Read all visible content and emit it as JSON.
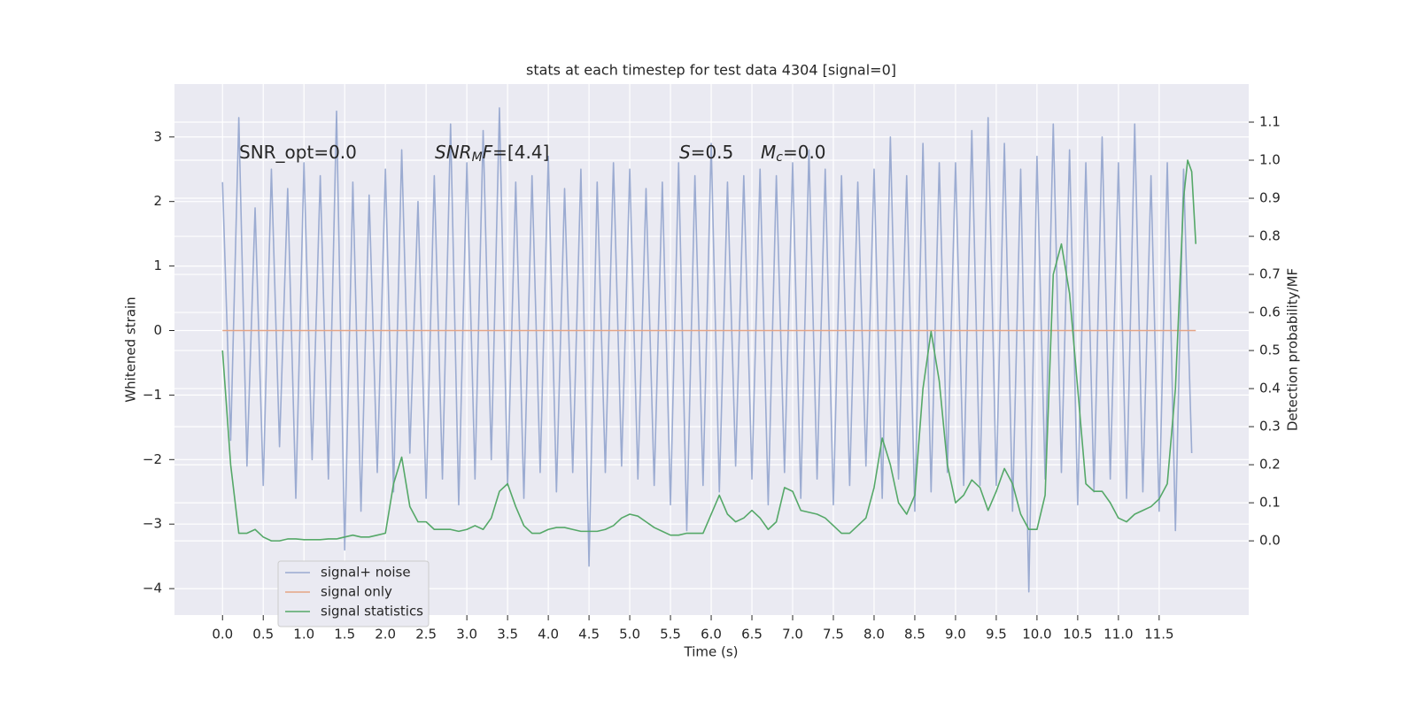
{
  "chart_data": {
    "type": "line",
    "title": "stats at each timestep for test data 4304 [signal=0]",
    "xlabel": "Time (s)",
    "ylabel": "Whitened strain",
    "y2label": "Detection probability/MF",
    "grid": true,
    "legend": "lower left",
    "xlim": [
      -0.59,
      12.6
    ],
    "ylim": [
      -4.41,
      3.82
    ],
    "y2lim": [
      -0.195,
      1.2
    ],
    "xticks": [
      {
        "value": 0,
        "label": "0.0"
      },
      {
        "value": 0.5,
        "label": "0.5"
      },
      {
        "value": 1,
        "label": "1.0"
      },
      {
        "value": 1.5,
        "label": "1.5"
      },
      {
        "value": 2,
        "label": "2.0"
      },
      {
        "value": 2.5,
        "label": "2.5"
      },
      {
        "value": 3,
        "label": "3.0"
      },
      {
        "value": 3.5,
        "label": "3.5"
      },
      {
        "value": 4,
        "label": "4.0"
      },
      {
        "value": 4.5,
        "label": "4.5"
      },
      {
        "value": 5,
        "label": "5.0"
      },
      {
        "value": 5.5,
        "label": "5.5"
      },
      {
        "value": 6,
        "label": "6.0"
      },
      {
        "value": 6.5,
        "label": "6.5"
      },
      {
        "value": 7,
        "label": "7.0"
      },
      {
        "value": 7.5,
        "label": "7.5"
      },
      {
        "value": 8,
        "label": "8.0"
      },
      {
        "value": 8.5,
        "label": "8.5"
      },
      {
        "value": 9,
        "label": "9.0"
      },
      {
        "value": 9.5,
        "label": "9.5"
      },
      {
        "value": 10,
        "label": "10.0"
      },
      {
        "value": 10.5,
        "label": "10.5"
      },
      {
        "value": 11,
        "label": "11.0"
      },
      {
        "value": 11.5,
        "label": "11.5"
      }
    ],
    "yticks": [
      {
        "value": -4,
        "label": "−4"
      },
      {
        "value": -3,
        "label": "−3"
      },
      {
        "value": -2,
        "label": "−2"
      },
      {
        "value": -1,
        "label": "−1"
      },
      0,
      1,
      2,
      3
    ],
    "y2ticks": [
      {
        "value": 0,
        "label": "0.0"
      },
      {
        "value": 0.1,
        "label": "0.1"
      },
      {
        "value": 0.2,
        "label": "0.2"
      },
      {
        "value": 0.3,
        "label": "0.3"
      },
      {
        "value": 0.4,
        "label": "0.4"
      },
      {
        "value": 0.5,
        "label": "0.5"
      },
      {
        "value": 0.6,
        "label": "0.6"
      },
      {
        "value": 0.7,
        "label": "0.7"
      },
      {
        "value": 0.8,
        "label": "0.8"
      },
      {
        "value": 0.9,
        "label": "0.9"
      },
      {
        "value": 1,
        "label": "1.0"
      },
      {
        "value": 1.1,
        "label": "1.1"
      }
    ],
    "annotations": [
      [
        {
          "text": "SNR_opt=0.0",
          "style": "normal"
        }
      ],
      [
        {
          "text": "SNR",
          "style": "italic"
        },
        {
          "text": "M",
          "style": "sub"
        },
        {
          "text": "F",
          "style": "italic"
        },
        {
          "text": "=[4.4]",
          "style": "normal"
        }
      ],
      [
        {
          "text": "S",
          "style": "italic"
        },
        {
          "text": "=0.5",
          "style": "normal"
        }
      ],
      [
        {
          "text": "M",
          "style": "italic"
        },
        {
          "text": "c",
          "style": "sub"
        },
        {
          "text": "=0.0",
          "style": "normal"
        }
      ]
    ],
    "series": [
      {
        "name": "signal+ noise",
        "color": "#8da0cb",
        "opacity": 0.85,
        "x": [
          0,
          0.1,
          0.2,
          0.3,
          0.4,
          0.5,
          0.6,
          0.7,
          0.8,
          0.9,
          1,
          1.1,
          1.2,
          1.3,
          1.4,
          1.5,
          1.6,
          1.7,
          1.8,
          1.9,
          2,
          2.1,
          2.2,
          2.3,
          2.4,
          2.5,
          2.6,
          2.7,
          2.8,
          2.9,
          3,
          3.1,
          3.2,
          3.3,
          3.4,
          3.5,
          3.6,
          3.7,
          3.8,
          3.9,
          4,
          4.1,
          4.2,
          4.3,
          4.4,
          4.5,
          4.6,
          4.7,
          4.8,
          4.9,
          5,
          5.1,
          5.2,
          5.3,
          5.4,
          5.5,
          5.6,
          5.7,
          5.8,
          5.9,
          6,
          6.1,
          6.2,
          6.3,
          6.4,
          6.5,
          6.6,
          6.7,
          6.8,
          6.9,
          7,
          7.1,
          7.2,
          7.3,
          7.4,
          7.5,
          7.6,
          7.7,
          7.8,
          7.9,
          8,
          8.1,
          8.2,
          8.3,
          8.4,
          8.5,
          8.6,
          8.7,
          8.8,
          8.9,
          9,
          9.1,
          9.2,
          9.3,
          9.4,
          9.5,
          9.6,
          9.7,
          9.8,
          9.9,
          10,
          10.1,
          10.2,
          10.3,
          10.4,
          10.5,
          10.6,
          10.7,
          10.8,
          10.9,
          11,
          11.1,
          11.2,
          11.3,
          11.4,
          11.5,
          11.6,
          11.7,
          11.8,
          11.9
        ],
        "values": [
          2.3,
          -1.7,
          3.3,
          -2.1,
          1.9,
          -2.4,
          2.5,
          -1.8,
          2.2,
          -2.6,
          2.6,
          -2.0,
          2.4,
          -2.3,
          3.4,
          -3.4,
          2.3,
          -2.8,
          2.1,
          -2.2,
          2.5,
          -2.5,
          2.8,
          -1.9,
          2.0,
          -2.6,
          2.4,
          -2.3,
          3.2,
          -2.7,
          2.6,
          -2.3,
          3.1,
          -2.0,
          3.45,
          -2.4,
          2.3,
          -2.6,
          2.4,
          -2.2,
          2.7,
          -2.5,
          2.2,
          -2.2,
          2.5,
          -3.65,
          2.3,
          -2.2,
          2.6,
          -2.1,
          2.5,
          -2.3,
          2.2,
          -2.4,
          2.3,
          -2.7,
          2.6,
          -3.1,
          2.4,
          -2.4,
          2.9,
          -2.5,
          2.3,
          -2.1,
          2.4,
          -2.3,
          2.5,
          -2.7,
          2.4,
          -2.2,
          2.6,
          -2.6,
          2.8,
          -2.3,
          2.5,
          -2.7,
          2.4,
          -2.4,
          2.3,
          -2.1,
          2.5,
          -2.6,
          3.0,
          -2.3,
          2.4,
          -2.8,
          2.9,
          -2.5,
          2.6,
          -2.2,
          2.6,
          -2.4,
          3.1,
          -2.4,
          3.3,
          -2.4,
          2.9,
          -2.8,
          2.5,
          -4.05,
          2.7,
          -2.3,
          3.2,
          -2.2,
          2.8,
          -2.7,
          2.6,
          -2.5,
          3.0,
          -2.3,
          2.6,
          -2.6,
          3.2,
          -2.5,
          2.4,
          -2.8,
          2.6,
          -3.1,
          2.5,
          -1.9
        ]
      },
      {
        "name": "signal only",
        "color": "#e5a585",
        "opacity": 1,
        "x": [
          0,
          11.95
        ],
        "values": [
          0,
          0
        ]
      },
      {
        "name": "signal statistics",
        "color": "#55a868",
        "opacity": 1,
        "axis": "y2",
        "x": [
          0,
          0.1,
          0.2,
          0.3,
          0.4,
          0.5,
          0.6,
          0.7,
          0.8,
          0.9,
          1,
          1.1,
          1.2,
          1.3,
          1.4,
          1.5,
          1.6,
          1.7,
          1.8,
          1.9,
          2,
          2.1,
          2.2,
          2.3,
          2.4,
          2.5,
          2.6,
          2.7,
          2.8,
          2.9,
          3,
          3.1,
          3.2,
          3.3,
          3.4,
          3.5,
          3.6,
          3.7,
          3.8,
          3.9,
          4,
          4.1,
          4.2,
          4.3,
          4.4,
          4.5,
          4.6,
          4.7,
          4.8,
          4.9,
          5,
          5.1,
          5.2,
          5.3,
          5.4,
          5.5,
          5.6,
          5.7,
          5.8,
          5.9,
          6,
          6.1,
          6.2,
          6.3,
          6.4,
          6.5,
          6.6,
          6.7,
          6.8,
          6.9,
          7,
          7.1,
          7.2,
          7.3,
          7.4,
          7.5,
          7.6,
          7.7,
          7.8,
          7.9,
          8,
          8.1,
          8.2,
          8.3,
          8.4,
          8.5,
          8.6,
          8.7,
          8.8,
          8.9,
          9,
          9.1,
          9.2,
          9.3,
          9.4,
          9.5,
          9.6,
          9.7,
          9.8,
          9.9,
          10,
          10.1,
          10.2,
          10.3,
          10.4,
          10.5,
          10.6,
          10.7,
          10.8,
          10.9,
          11,
          11.1,
          11.2,
          11.3,
          11.4,
          11.5,
          11.6,
          11.7,
          11.8,
          11.85,
          11.9,
          11.95
        ],
        "values": [
          0.5,
          0.2,
          0.02,
          0.02,
          0.03,
          0.01,
          0,
          0,
          0.005,
          0.005,
          0.003,
          0.003,
          0.003,
          0.005,
          0.005,
          0.01,
          0.015,
          0.01,
          0.01,
          0.015,
          0.02,
          0.15,
          0.22,
          0.09,
          0.05,
          0.05,
          0.03,
          0.03,
          0.03,
          0.025,
          0.03,
          0.04,
          0.03,
          0.06,
          0.13,
          0.15,
          0.09,
          0.04,
          0.02,
          0.02,
          0.03,
          0.035,
          0.035,
          0.03,
          0.025,
          0.025,
          0.025,
          0.03,
          0.04,
          0.06,
          0.07,
          0.065,
          0.05,
          0.035,
          0.025,
          0.015,
          0.015,
          0.02,
          0.02,
          0.02,
          0.07,
          0.12,
          0.07,
          0.05,
          0.06,
          0.08,
          0.06,
          0.03,
          0.05,
          0.14,
          0.13,
          0.08,
          0.075,
          0.07,
          0.06,
          0.04,
          0.02,
          0.02,
          0.04,
          0.06,
          0.14,
          0.27,
          0.2,
          0.1,
          0.07,
          0.12,
          0.4,
          0.55,
          0.42,
          0.2,
          0.1,
          0.12,
          0.16,
          0.14,
          0.08,
          0.13,
          0.19,
          0.15,
          0.07,
          0.03,
          0.03,
          0.12,
          0.7,
          0.78,
          0.65,
          0.4,
          0.15,
          0.13,
          0.13,
          0.1,
          0.06,
          0.05,
          0.07,
          0.08,
          0.09,
          0.11,
          0.15,
          0.4,
          0.9,
          1.0,
          0.97,
          0.78
        ]
      }
    ]
  }
}
